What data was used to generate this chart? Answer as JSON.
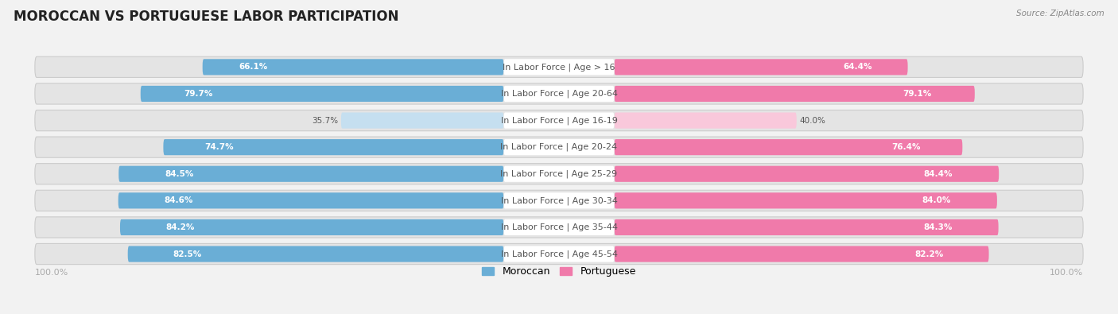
{
  "title": "MOROCCAN VS PORTUGUESE LABOR PARTICIPATION",
  "source": "Source: ZipAtlas.com",
  "categories": [
    "In Labor Force | Age > 16",
    "In Labor Force | Age 20-64",
    "In Labor Force | Age 16-19",
    "In Labor Force | Age 20-24",
    "In Labor Force | Age 25-29",
    "In Labor Force | Age 30-34",
    "In Labor Force | Age 35-44",
    "In Labor Force | Age 45-54"
  ],
  "moroccan": [
    66.1,
    79.7,
    35.7,
    74.7,
    84.5,
    84.6,
    84.2,
    82.5
  ],
  "portuguese": [
    64.4,
    79.1,
    40.0,
    76.4,
    84.4,
    84.0,
    84.3,
    82.2
  ],
  "moroccan_color": "#6aaed6",
  "portuguese_color": "#f07aaa",
  "moroccan_light_color": "#c5dff0",
  "portuguese_light_color": "#f9c8db",
  "bg_color": "#f2f2f2",
  "row_bg_color": "#e4e4e4",
  "title_color": "#222222",
  "source_color": "#888888",
  "label_color": "#555555",
  "value_color_dark": "#555555",
  "axis_label_color": "#aaaaaa",
  "max_val": 100.0,
  "title_fontsize": 12,
  "label_fontsize": 8,
  "value_fontsize": 7.5,
  "axis_fontsize": 8,
  "low_threshold": 50
}
